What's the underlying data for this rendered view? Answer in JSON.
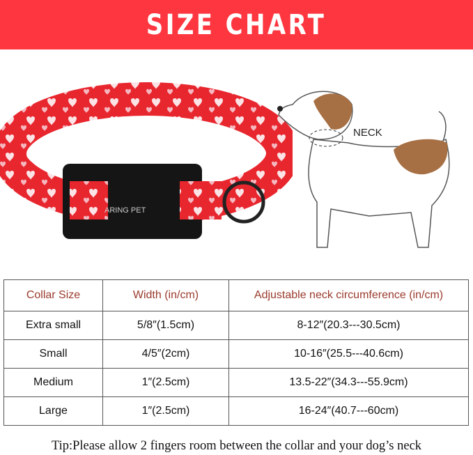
{
  "banner": {
    "title": "SIZE CHART",
    "color": "#fe3640"
  },
  "product": {
    "brand": "ARING PET",
    "collar_color": "#e8262e",
    "pattern": "hearts"
  },
  "diagram": {
    "neck_label": "NECK"
  },
  "table": {
    "headers": [
      "Collar Size",
      "Width (in/cm)",
      "Adjustable neck circumference (in/cm)"
    ],
    "rows": [
      [
        "Extra small",
        "5/8″(1.5cm)",
        "8-12″(20.3---30.5cm)"
      ],
      [
        "Small",
        "4/5″(2cm)",
        "10-16″(25.5---40.6cm)"
      ],
      [
        "Medium",
        "1″(2.5cm)",
        "13.5-22″(34.3---55.9cm)"
      ],
      [
        "Large",
        "1″(2.5cm)",
        "16-24″(40.7---60cm)"
      ]
    ]
  },
  "tip": "Tip:Please allow 2 fingers room between the collar and your dog’s neck"
}
